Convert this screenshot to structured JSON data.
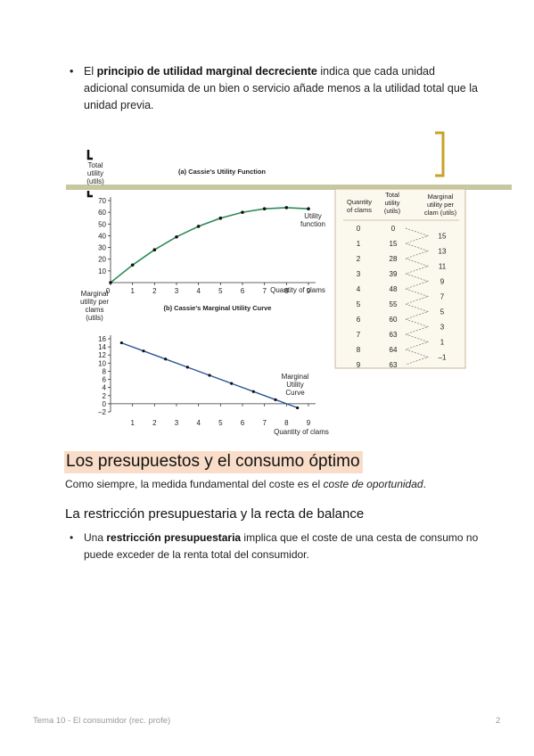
{
  "intro_bullet": {
    "prefix": "El ",
    "bold": "principio de utilidad marginal decreciente",
    "suffix": " indica que cada unidad adicional consumida de un bien o servicio añade menos a la utilidad total que la unidad previa."
  },
  "chart_data": [
    {
      "type": "line",
      "title": "(a)  Cassie's Utility Function",
      "ylabel": "Total utility (utils)",
      "xlabel": "Quantity of clams",
      "series_label": "Utility function",
      "x": [
        0,
        1,
        2,
        3,
        4,
        5,
        6,
        7,
        8,
        9
      ],
      "y": [
        0,
        15,
        28,
        39,
        48,
        55,
        60,
        63,
        64,
        63
      ],
      "xticks": [
        "0",
        "1",
        "2",
        "3",
        "4",
        "5",
        "6",
        "7",
        "8",
        "9"
      ],
      "yticks": [
        "10",
        "20",
        "30",
        "40",
        "50",
        "60",
        "70"
      ],
      "ylim": [
        0,
        70
      ],
      "xlim": [
        0,
        9
      ],
      "color": "#2e8b57"
    },
    {
      "type": "line",
      "title": "(b)  Cassie's Marginal Utility Curve",
      "ylabel": "Marginal utility per clam (utils)",
      "xlabel": "Quantity of clams",
      "series_label": "Marginal Utility Curve",
      "x": [
        0.5,
        1.5,
        2.5,
        3.5,
        4.5,
        5.5,
        6.5,
        7.5,
        8.5
      ],
      "y": [
        15,
        13,
        11,
        9,
        7,
        5,
        3,
        1,
        -1
      ],
      "xticks": [
        "1",
        "2",
        "3",
        "4",
        "5",
        "6",
        "7",
        "8",
        "9"
      ],
      "yticks": [
        "–2",
        "0",
        "2",
        "4",
        "6",
        "8",
        "10",
        "12",
        "14",
        "16"
      ],
      "ylim": [
        -2,
        16
      ],
      "xlim": [
        0,
        9
      ],
      "color": "#2a5599"
    },
    {
      "type": "table",
      "headers": [
        "Quantity of clams",
        "Total utility (utils)",
        "Marginal utility per clam (utils)"
      ],
      "quantity": [
        "0",
        "1",
        "2",
        "3",
        "4",
        "5",
        "6",
        "7",
        "8",
        "9"
      ],
      "total": [
        "0",
        "15",
        "28",
        "39",
        "48",
        "55",
        "60",
        "63",
        "64",
        "63"
      ],
      "marginal": [
        "15",
        "13",
        "11",
        "9",
        "7",
        "5",
        "3",
        "1",
        "–1"
      ]
    }
  ],
  "section_title": "Los presupuestos y el consumo óptimo",
  "section_para": {
    "prefix": "Como siempre, la medida fundamental del coste es el ",
    "italic": "coste de oportunidad",
    "suffix": "."
  },
  "subsection_title": "La restricción presupuestaria y la recta de balance",
  "second_bullet": {
    "prefix": "Una ",
    "bold": "restricción presupuestaria",
    "suffix": " implica que el coste de una cesta de consumo no puede exceder de la renta total del consumidor."
  },
  "footer": {
    "left": "Tema 10 - El consumidor (rec. profe)",
    "page": "2"
  },
  "colors": {
    "accent_band": "#c7c7a0",
    "bracket": "#c9a227",
    "section_highlight": "#f9ddc8"
  }
}
